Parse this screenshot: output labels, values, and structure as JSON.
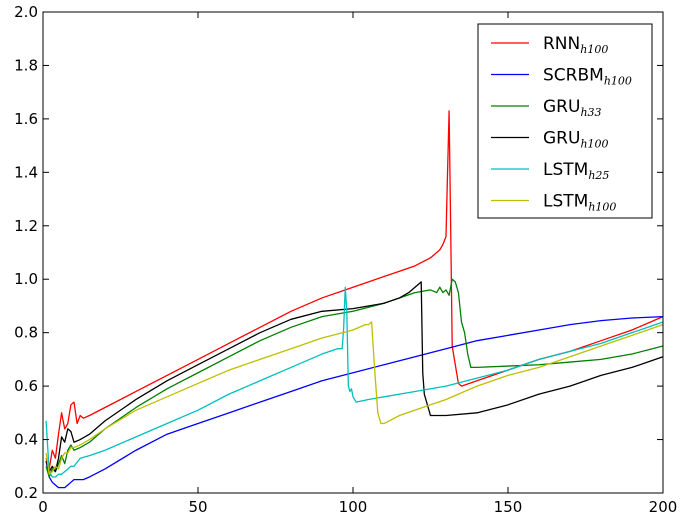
{
  "chart_data": {
    "type": "line",
    "xlim": [
      0,
      200
    ],
    "ylim": [
      0.2,
      2.0
    ],
    "x_ticks": [
      "0",
      "50",
      "100",
      "150",
      "200"
    ],
    "y_ticks": [
      "0.2",
      "0.4",
      "0.6",
      "0.8",
      "1.0",
      "1.2",
      "1.4",
      "1.6",
      "1.8",
      "2.0"
    ],
    "x_tick_values": [
      0,
      50,
      100,
      150,
      200
    ],
    "y_tick_values": [
      0.2,
      0.4,
      0.6,
      0.8,
      1.0,
      1.2,
      1.4,
      1.6,
      1.8,
      2.0
    ],
    "grid": false,
    "legend_position": "top-right",
    "series": [
      {
        "base": "RNN",
        "sub": "h100",
        "color": "#ff0000",
        "x": [
          1,
          2,
          3,
          4,
          5,
          6,
          7,
          8,
          9,
          10,
          11,
          12,
          13,
          15,
          20,
          30,
          40,
          50,
          60,
          70,
          80,
          90,
          100,
          110,
          115,
          120,
          125,
          128,
          129,
          130,
          130.5,
          131,
          131.5,
          132,
          133,
          134,
          135,
          140,
          150,
          160,
          170,
          180,
          190,
          200
        ],
        "y": [
          0.33,
          0.29,
          0.36,
          0.33,
          0.42,
          0.5,
          0.44,
          0.46,
          0.53,
          0.54,
          0.46,
          0.49,
          0.48,
          0.49,
          0.52,
          0.58,
          0.64,
          0.7,
          0.76,
          0.82,
          0.88,
          0.93,
          0.97,
          1.01,
          1.03,
          1.05,
          1.08,
          1.11,
          1.13,
          1.16,
          1.4,
          1.63,
          1.2,
          0.75,
          0.68,
          0.61,
          0.6,
          0.62,
          0.66,
          0.7,
          0.73,
          0.77,
          0.81,
          0.86
        ]
      },
      {
        "base": "SCRBM",
        "sub": "h100",
        "color": "#0000ff",
        "x": [
          1,
          2,
          3,
          4,
          5,
          6,
          7,
          8,
          9,
          10,
          11,
          12,
          13,
          15,
          20,
          30,
          40,
          50,
          60,
          70,
          80,
          90,
          100,
          110,
          120,
          130,
          140,
          150,
          160,
          170,
          180,
          190,
          200
        ],
        "y": [
          0.32,
          0.26,
          0.24,
          0.23,
          0.22,
          0.22,
          0.22,
          0.23,
          0.24,
          0.25,
          0.25,
          0.25,
          0.25,
          0.26,
          0.29,
          0.36,
          0.42,
          0.46,
          0.5,
          0.54,
          0.58,
          0.62,
          0.65,
          0.68,
          0.71,
          0.74,
          0.77,
          0.79,
          0.81,
          0.83,
          0.845,
          0.855,
          0.86
        ]
      },
      {
        "base": "GRU",
        "sub": "h33",
        "color": "#008000",
        "x": [
          1,
          2,
          3,
          4,
          5,
          6,
          7,
          8,
          9,
          10,
          12,
          15,
          20,
          30,
          40,
          50,
          60,
          70,
          80,
          90,
          100,
          110,
          120,
          125,
          127,
          128,
          129,
          130,
          131,
          132,
          133,
          134,
          135,
          136,
          137,
          138,
          140,
          150,
          160,
          170,
          180,
          190,
          200
        ],
        "y": [
          0.3,
          0.26,
          0.29,
          0.28,
          0.31,
          0.34,
          0.31,
          0.36,
          0.38,
          0.36,
          0.37,
          0.39,
          0.44,
          0.52,
          0.59,
          0.65,
          0.71,
          0.77,
          0.82,
          0.86,
          0.88,
          0.91,
          0.95,
          0.96,
          0.95,
          0.97,
          0.95,
          0.96,
          0.94,
          1.0,
          0.99,
          0.95,
          0.84,
          0.8,
          0.72,
          0.67,
          0.67,
          0.675,
          0.68,
          0.69,
          0.7,
          0.72,
          0.75
        ]
      },
      {
        "base": "GRU",
        "sub": "h100",
        "color": "#000000",
        "x": [
          1,
          2,
          3,
          4,
          5,
          6,
          7,
          8,
          9,
          10,
          12,
          15,
          20,
          30,
          40,
          50,
          60,
          70,
          80,
          90,
          100,
          110,
          115,
          118,
          120,
          121,
          122,
          122.5,
          123,
          125,
          127,
          130,
          140,
          150,
          160,
          170,
          180,
          190,
          200
        ],
        "y": [
          0.32,
          0.28,
          0.3,
          0.28,
          0.33,
          0.41,
          0.39,
          0.44,
          0.43,
          0.39,
          0.4,
          0.42,
          0.47,
          0.55,
          0.62,
          0.68,
          0.74,
          0.8,
          0.85,
          0.88,
          0.89,
          0.91,
          0.93,
          0.95,
          0.97,
          0.98,
          0.99,
          0.65,
          0.57,
          0.49,
          0.49,
          0.49,
          0.5,
          0.53,
          0.57,
          0.6,
          0.64,
          0.67,
          0.71
        ]
      },
      {
        "base": "LSTM",
        "sub": "h25",
        "color": "#00bfbf",
        "x": [
          1,
          2,
          3,
          4,
          5,
          6,
          7,
          8,
          9,
          10,
          12,
          15,
          20,
          30,
          40,
          50,
          60,
          70,
          80,
          90,
          95,
          96.5,
          97,
          97.5,
          98,
          98.5,
          99,
          99.5,
          100,
          101,
          105,
          110,
          120,
          130,
          140,
          150,
          160,
          170,
          180,
          190,
          200
        ],
        "y": [
          0.47,
          0.28,
          0.26,
          0.26,
          0.27,
          0.27,
          0.28,
          0.29,
          0.3,
          0.3,
          0.33,
          0.34,
          0.36,
          0.41,
          0.46,
          0.51,
          0.57,
          0.62,
          0.67,
          0.72,
          0.74,
          0.74,
          0.82,
          0.97,
          0.88,
          0.6,
          0.58,
          0.59,
          0.56,
          0.54,
          0.55,
          0.56,
          0.58,
          0.6,
          0.63,
          0.66,
          0.7,
          0.73,
          0.76,
          0.8,
          0.84
        ]
      },
      {
        "base": "LSTM",
        "sub": "h100",
        "color": "#bfbf00",
        "x": [
          1,
          2,
          3,
          4,
          5,
          6,
          7,
          8,
          9,
          10,
          12,
          15,
          20,
          30,
          40,
          50,
          60,
          70,
          80,
          90,
          100,
          104,
          105,
          106,
          107,
          108,
          109,
          110,
          115,
          120,
          130,
          140,
          150,
          160,
          170,
          180,
          190,
          200
        ],
        "y": [
          0.35,
          0.27,
          0.28,
          0.3,
          0.29,
          0.33,
          0.35,
          0.35,
          0.37,
          0.37,
          0.38,
          0.4,
          0.44,
          0.51,
          0.56,
          0.61,
          0.66,
          0.7,
          0.74,
          0.78,
          0.81,
          0.83,
          0.83,
          0.84,
          0.66,
          0.5,
          0.46,
          0.46,
          0.49,
          0.51,
          0.55,
          0.6,
          0.64,
          0.67,
          0.71,
          0.75,
          0.79,
          0.83
        ]
      }
    ]
  }
}
